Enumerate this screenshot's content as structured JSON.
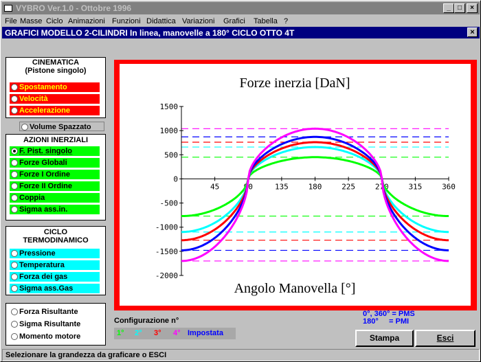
{
  "window": {
    "title": "VYBRO Ver.1.0 - Ottobre 1996",
    "controls": [
      "_",
      "□",
      "×"
    ]
  },
  "menu": [
    "File",
    "Masse",
    "Ciclo",
    "Animazioni",
    "Funzioni",
    "Didattica",
    "Variazioni",
    "Grafici",
    "Tabella",
    "?"
  ],
  "subtitle": {
    "text": "GRAFICI MODELLO 2-CILINDRI In linea, manovelle a 180° CICLO OTTO 4T",
    "close": "×"
  },
  "cinematica": {
    "title": "CINEMATICA",
    "subtitle": "(Pistone singolo)",
    "items": [
      "Spostamento",
      "Velocità",
      "Accelerazione"
    ]
  },
  "volume_button": "Volume Spazzato",
  "azioni": {
    "title": "AZIONI INERZIALI",
    "items": [
      "F. Pist. singolo",
      "Forze Globali",
      "Forze I Ordine",
      "Forze II Ordine",
      "Coppia",
      "Sigma ass.in."
    ],
    "selected": "F. Pist. singolo"
  },
  "ciclo": {
    "title1": "CICLO",
    "title2": "TERMODINAMICO",
    "items": [
      "Pressione",
      "Temperatura",
      "Forza dei gas",
      "Sigma ass.Gas"
    ]
  },
  "risultanti": {
    "items": [
      "Forza Risultante",
      "Sigma Risultante",
      "Momento motore"
    ]
  },
  "configurazione": {
    "label": "Configurazione n°",
    "items": [
      {
        "label": "1°",
        "color": "#00ff00"
      },
      {
        "label": "2°",
        "color": "#00ffff"
      },
      {
        "label": "3°",
        "color": "#ff0000"
      },
      {
        "label": "4°",
        "color": "#ff00ff"
      },
      {
        "label": "Impostata",
        "color": "#0000ff"
      }
    ]
  },
  "legend_note": {
    "line1": "0°, 360° = PMS",
    "line2": "180°     = PMI"
  },
  "buttons": {
    "print": "Stampa",
    "exit": "Esci"
  },
  "status": "Selezionare la grandezza da graficare o ESCI",
  "chart_data": {
    "type": "line",
    "title": "Forze inerzia [DaN]",
    "xlabel": "Angolo Manovella [°]",
    "ylabel": "",
    "xlim": [
      0,
      360
    ],
    "ylim": [
      -2000,
      1500
    ],
    "xticks": [
      45,
      90,
      135,
      180,
      225,
      270,
      315,
      360
    ],
    "yticks": [
      1500,
      1000,
      500,
      0,
      -500,
      -1000,
      -1500,
      -2000
    ],
    "series": [
      {
        "color": "#00ff00",
        "max": 450,
        "min": -770
      },
      {
        "color": "#00ffff",
        "max": 660,
        "min": -1100
      },
      {
        "color": "#ff0000",
        "max": 760,
        "min": -1270
      },
      {
        "color": "#0000ff",
        "max": 870,
        "min": -1480
      },
      {
        "color": "#ff00ff",
        "max": 1040,
        "min": -1700
      }
    ]
  }
}
